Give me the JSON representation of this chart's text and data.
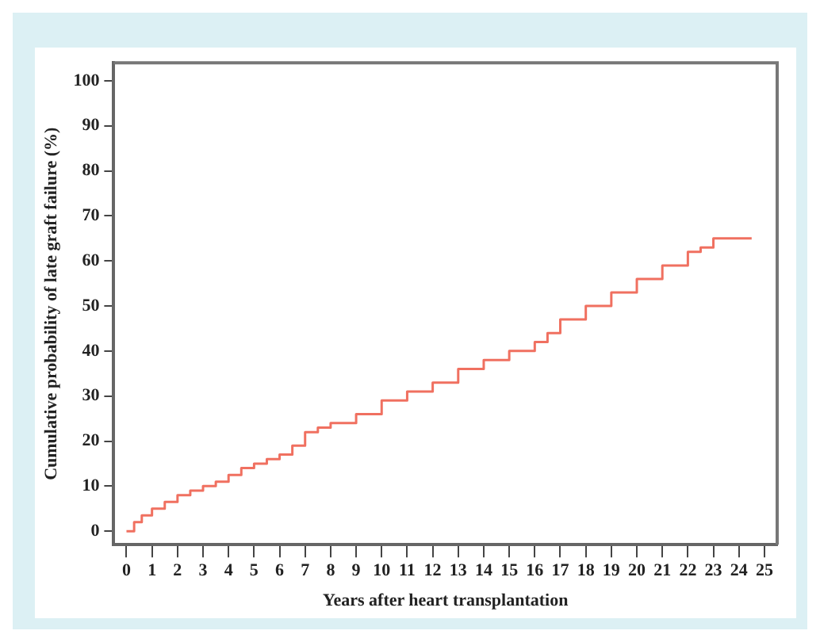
{
  "chart_data": {
    "type": "step",
    "xlabel": "Years after heart transplantation",
    "ylabel": "Cumulative probability of late graft failure (%)",
    "series": [
      {
        "color": "#f07060",
        "x": [
          0,
          0.3,
          0.6,
          1,
          1.5,
          2,
          2.5,
          3,
          3.5,
          4,
          4.5,
          5,
          5.5,
          6,
          6.5,
          7,
          7.5,
          8,
          9,
          10,
          11,
          12,
          13,
          14,
          15,
          16,
          16.5,
          17,
          18,
          19,
          20,
          21,
          22,
          22.5,
          23,
          23.5,
          24,
          24.5
        ],
        "values": [
          0,
          2,
          3.5,
          5,
          6.5,
          8,
          9,
          10,
          11,
          12.5,
          14,
          15,
          16,
          17,
          19,
          22,
          23,
          24,
          26,
          29,
          31,
          33,
          36,
          38,
          40,
          42,
          44,
          47,
          50,
          53,
          56,
          59,
          62,
          63,
          65,
          65,
          65,
          65
        ]
      }
    ],
    "xlim": [
      -0.5,
      25.5
    ],
    "xticks": [
      0,
      1,
      2,
      3,
      4,
      5,
      6,
      7,
      8,
      9,
      10,
      11,
      12,
      13,
      14,
      15,
      16,
      17,
      18,
      19,
      20,
      21,
      22,
      23,
      24,
      25
    ],
    "ylim": [
      -3,
      104
    ],
    "yticks": [
      0,
      10,
      20,
      30,
      40,
      50,
      60,
      70,
      80,
      90,
      100
    ],
    "grid": false,
    "legend": false
  }
}
